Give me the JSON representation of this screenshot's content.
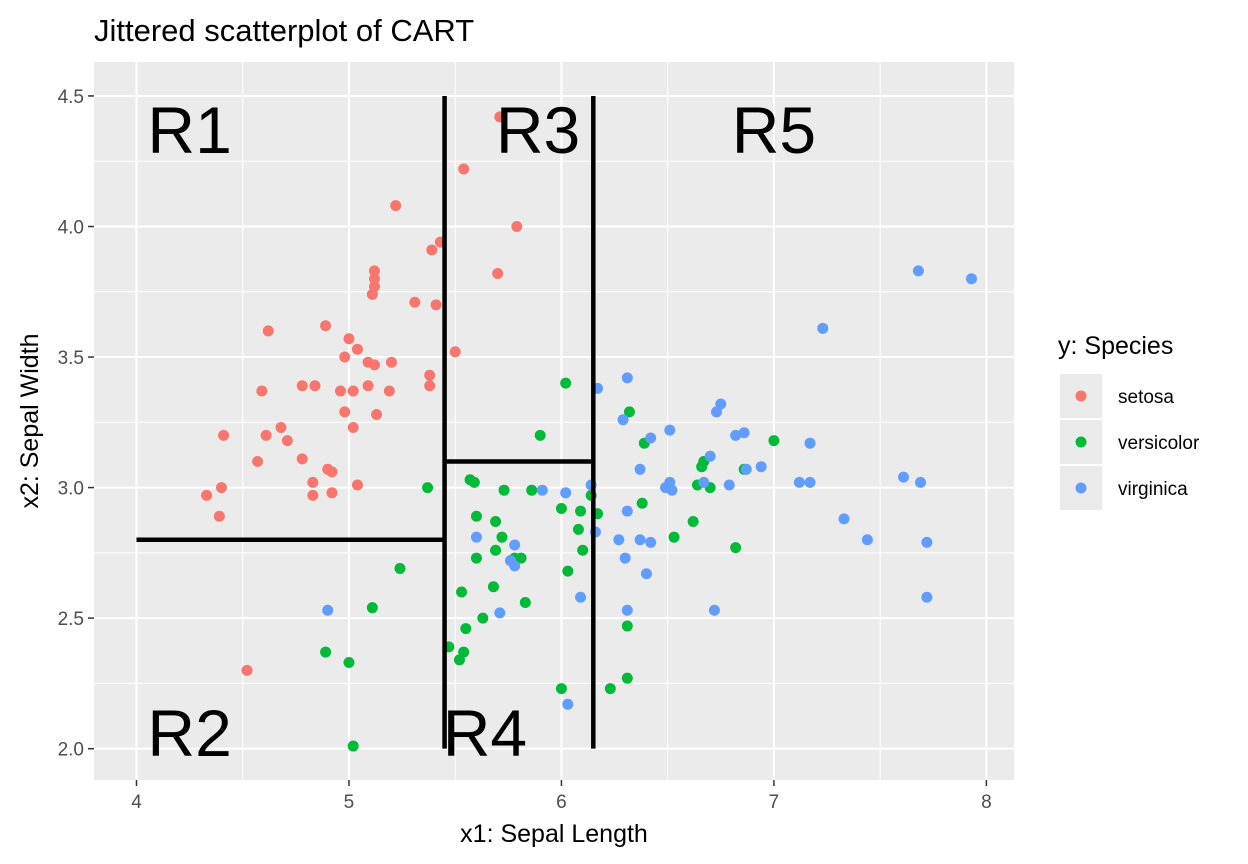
{
  "chart_data": {
    "type": "scatter",
    "title": "Jittered scatterplot of CART",
    "xlabel": "x1: Sepal Length",
    "ylabel": "x2: Sepal Width",
    "xlim": [
      3.8,
      8.13
    ],
    "ylim": [
      1.88,
      4.63
    ],
    "x_ticks": [
      4,
      5,
      6,
      7,
      8
    ],
    "y_ticks": [
      2.0,
      2.5,
      3.0,
      3.5,
      4.0,
      4.5
    ],
    "x_tick_labels": [
      "4",
      "5",
      "6",
      "7",
      "8"
    ],
    "y_tick_labels": [
      "2.0",
      "2.5",
      "3.0",
      "3.5",
      "4.0",
      "4.5"
    ],
    "grid": true,
    "legend": {
      "title": "y: Species",
      "placement": "right"
    },
    "series": [
      {
        "name": "setosa",
        "color": "#F8766D",
        "points": [
          [
            5.71,
            4.42
          ],
          [
            5.54,
            4.22
          ],
          [
            5.22,
            4.08
          ],
          [
            5.79,
            4.0
          ],
          [
            5.43,
            3.94
          ],
          [
            5.39,
            3.91
          ],
          [
            5.12,
            3.83
          ],
          [
            5.12,
            3.8
          ],
          [
            5.12,
            3.77
          ],
          [
            5.11,
            3.74
          ],
          [
            5.7,
            3.82
          ],
          [
            5.31,
            3.71
          ],
          [
            5.41,
            3.7
          ],
          [
            4.62,
            3.6
          ],
          [
            4.89,
            3.62
          ],
          [
            5.0,
            3.57
          ],
          [
            5.04,
            3.53
          ],
          [
            5.5,
            3.52
          ],
          [
            4.98,
            3.5
          ],
          [
            5.09,
            3.48
          ],
          [
            5.12,
            3.47
          ],
          [
            5.2,
            3.48
          ],
          [
            5.38,
            3.43
          ],
          [
            5.38,
            3.39
          ],
          [
            4.78,
            3.39
          ],
          [
            4.84,
            3.39
          ],
          [
            5.09,
            3.39
          ],
          [
            4.96,
            3.37
          ],
          [
            5.02,
            3.37
          ],
          [
            5.19,
            3.37
          ],
          [
            4.59,
            3.37
          ],
          [
            4.98,
            3.29
          ],
          [
            5.13,
            3.28
          ],
          [
            4.68,
            3.23
          ],
          [
            5.02,
            3.23
          ],
          [
            4.41,
            3.2
          ],
          [
            4.61,
            3.2
          ],
          [
            4.71,
            3.18
          ],
          [
            4.57,
            3.1
          ],
          [
            4.78,
            3.11
          ],
          [
            4.9,
            3.07
          ],
          [
            4.92,
            3.06
          ],
          [
            4.83,
            3.02
          ],
          [
            5.04,
            3.01
          ],
          [
            4.4,
            3.0
          ],
          [
            4.92,
            2.98
          ],
          [
            4.33,
            2.97
          ],
          [
            4.83,
            2.97
          ],
          [
            4.39,
            2.89
          ],
          [
            4.52,
            2.3
          ]
        ]
      },
      {
        "name": "versicolor",
        "color": "#00BA38",
        "points": [
          [
            6.02,
            3.4
          ],
          [
            5.9,
            3.2
          ],
          [
            6.32,
            3.29
          ],
          [
            6.39,
            3.17
          ],
          [
            7.0,
            3.18
          ],
          [
            6.67,
            3.1
          ],
          [
            6.66,
            3.08
          ],
          [
            6.86,
            3.07
          ],
          [
            5.57,
            3.03
          ],
          [
            5.59,
            3.02
          ],
          [
            6.64,
            3.01
          ],
          [
            6.7,
            3.0
          ],
          [
            5.37,
            3.0
          ],
          [
            5.73,
            2.99
          ],
          [
            5.86,
            2.99
          ],
          [
            6.14,
            2.97
          ],
          [
            6.38,
            2.94
          ],
          [
            6.0,
            2.92
          ],
          [
            6.09,
            2.91
          ],
          [
            6.17,
            2.9
          ],
          [
            5.6,
            2.89
          ],
          [
            5.69,
            2.87
          ],
          [
            6.62,
            2.87
          ],
          [
            6.08,
            2.84
          ],
          [
            5.72,
            2.81
          ],
          [
            6.53,
            2.81
          ],
          [
            6.82,
            2.77
          ],
          [
            5.69,
            2.76
          ],
          [
            6.1,
            2.76
          ],
          [
            5.78,
            2.73
          ],
          [
            5.81,
            2.73
          ],
          [
            5.6,
            2.73
          ],
          [
            5.24,
            2.69
          ],
          [
            6.03,
            2.68
          ],
          [
            5.68,
            2.62
          ],
          [
            5.53,
            2.6
          ],
          [
            5.83,
            2.56
          ],
          [
            5.11,
            2.54
          ],
          [
            5.63,
            2.5
          ],
          [
            6.31,
            2.47
          ],
          [
            5.55,
            2.46
          ],
          [
            5.47,
            2.39
          ],
          [
            4.89,
            2.37
          ],
          [
            5.54,
            2.37
          ],
          [
            5.52,
            2.34
          ],
          [
            5.0,
            2.33
          ],
          [
            6.31,
            2.27
          ],
          [
            6.0,
            2.23
          ],
          [
            6.23,
            2.23
          ],
          [
            5.02,
            2.01
          ]
        ]
      },
      {
        "name": "virginica",
        "color": "#619CFF",
        "points": [
          [
            7.68,
            3.83
          ],
          [
            7.93,
            3.8
          ],
          [
            7.23,
            3.61
          ],
          [
            6.31,
            3.42
          ],
          [
            6.17,
            3.38
          ],
          [
            6.75,
            3.32
          ],
          [
            6.73,
            3.29
          ],
          [
            6.29,
            3.26
          ],
          [
            6.51,
            3.22
          ],
          [
            6.86,
            3.21
          ],
          [
            6.82,
            3.2
          ],
          [
            6.42,
            3.19
          ],
          [
            7.17,
            3.17
          ],
          [
            6.7,
            3.12
          ],
          [
            6.94,
            3.08
          ],
          [
            6.37,
            3.07
          ],
          [
            6.87,
            3.07
          ],
          [
            7.61,
            3.04
          ],
          [
            6.51,
            3.02
          ],
          [
            7.12,
            3.02
          ],
          [
            7.17,
            3.02
          ],
          [
            7.69,
            3.02
          ],
          [
            6.67,
            3.02
          ],
          [
            6.79,
            3.01
          ],
          [
            6.14,
            3.01
          ],
          [
            6.49,
            3.0
          ],
          [
            6.52,
            2.99
          ],
          [
            5.91,
            2.99
          ],
          [
            6.02,
            2.98
          ],
          [
            6.31,
            2.91
          ],
          [
            7.33,
            2.88
          ],
          [
            6.16,
            2.83
          ],
          [
            6.27,
            2.8
          ],
          [
            7.44,
            2.8
          ],
          [
            7.72,
            2.79
          ],
          [
            6.37,
            2.8
          ],
          [
            6.42,
            2.79
          ],
          [
            5.6,
            2.81
          ],
          [
            5.78,
            2.78
          ],
          [
            5.76,
            2.72
          ],
          [
            5.78,
            2.7
          ],
          [
            6.3,
            2.73
          ],
          [
            6.4,
            2.67
          ],
          [
            6.09,
            2.58
          ],
          [
            7.72,
            2.58
          ],
          [
            4.9,
            2.53
          ],
          [
            5.71,
            2.52
          ],
          [
            6.31,
            2.53
          ],
          [
            6.72,
            2.53
          ],
          [
            6.03,
            2.17
          ]
        ]
      }
    ],
    "splits": [
      {
        "x": [
          4.0,
          5.45
        ],
        "y": [
          2.8,
          2.8
        ]
      },
      {
        "x": [
          5.45,
          5.45
        ],
        "y": [
          2.0,
          4.5
        ]
      },
      {
        "x": [
          5.45,
          6.15
        ],
        "y": [
          3.1,
          3.1
        ]
      },
      {
        "x": [
          6.15,
          6.15
        ],
        "y": [
          2.0,
          4.5
        ]
      }
    ],
    "regions": [
      {
        "label": "R1",
        "x": 4.25,
        "y": 4.37
      },
      {
        "label": "R2",
        "x": 4.25,
        "y": 2.06
      },
      {
        "label": "R3",
        "x": 5.89,
        "y": 4.37
      },
      {
        "label": "R4",
        "x": 5.64,
        "y": 2.06
      },
      {
        "label": "R5",
        "x": 7.0,
        "y": 4.37
      }
    ]
  }
}
